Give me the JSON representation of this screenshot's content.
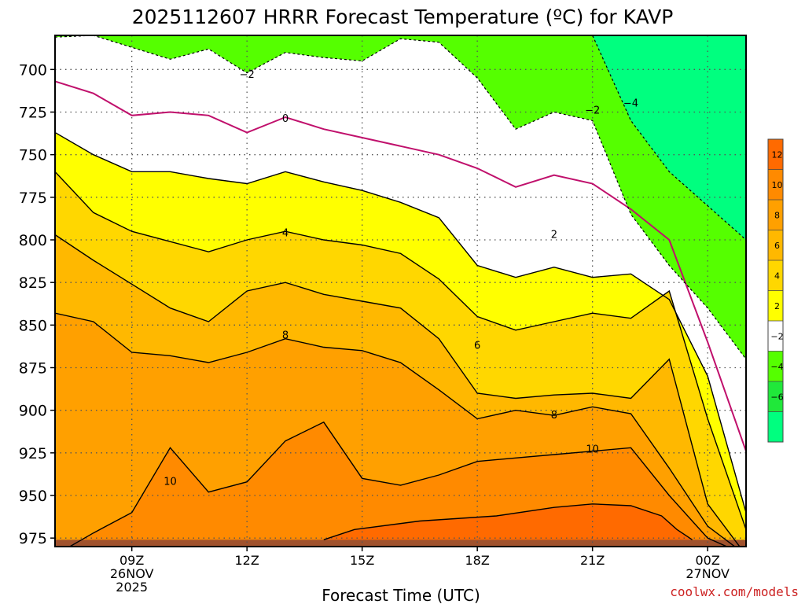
{
  "chart_data": {
    "type": "contour",
    "title": "2025112607 HRRR Forecast Temperature (ºC) for KAVP",
    "xlabel": "Forecast Time (UTC)",
    "credit": "coolwx.com/models",
    "x_ticks": [
      {
        "hour": 9,
        "label": "09Z",
        "sub1": "26NOV",
        "sub2": "2025"
      },
      {
        "hour": 12,
        "label": "12Z",
        "sub1": "",
        "sub2": ""
      },
      {
        "hour": 15,
        "label": "15Z",
        "sub1": "",
        "sub2": ""
      },
      {
        "hour": 18,
        "label": "18Z",
        "sub1": "",
        "sub2": ""
      },
      {
        "hour": 21,
        "label": "21Z",
        "sub1": "",
        "sub2": ""
      },
      {
        "hour": 24,
        "label": "00Z",
        "sub1": "27NOV",
        "sub2": ""
      }
    ],
    "x_range_hours": [
      7,
      25
    ],
    "y_ticks": [
      700,
      725,
      750,
      775,
      800,
      825,
      850,
      875,
      900,
      925,
      950,
      975
    ],
    "y_range_hpa": [
      680,
      980
    ],
    "grid": true,
    "hours": [
      7,
      8,
      9,
      10,
      11,
      12,
      13,
      14,
      15,
      16,
      17,
      18,
      19,
      20,
      21,
      22,
      23,
      24,
      25
    ],
    "isotherms": [
      {
        "temp": 10,
        "pressure": [
          985,
          972,
          960,
          922,
          948,
          942,
          918,
          907,
          940,
          944,
          938,
          930,
          928,
          926,
          924,
          922,
          950,
          975,
          985
        ]
      },
      {
        "temp": 8,
        "pressure": [
          843,
          848,
          866,
          868,
          872,
          866,
          858,
          863,
          865,
          872,
          888,
          905,
          900,
          903,
          898,
          902,
          934,
          968,
          985
        ]
      },
      {
        "temp": 6,
        "pressure": [
          797,
          812,
          826,
          840,
          848,
          830,
          825,
          832,
          836,
          840,
          858,
          890,
          893,
          891,
          890,
          893,
          870,
          955,
          985
        ]
      },
      {
        "temp": 4,
        "pressure": [
          760,
          784,
          795,
          801,
          807,
          800,
          795,
          800,
          803,
          808,
          823,
          845,
          853,
          848,
          843,
          846,
          830,
          905,
          970
        ]
      },
      {
        "temp": 2,
        "pressure": [
          737,
          750,
          760,
          760,
          764,
          767,
          760,
          766,
          771,
          778,
          787,
          815,
          822,
          816,
          822,
          820,
          835,
          880,
          960
        ]
      },
      {
        "temp": 0,
        "pressure": [
          707,
          714,
          727,
          725,
          727,
          737,
          728,
          735,
          740,
          745,
          750,
          758,
          769,
          762,
          767,
          782,
          800,
          860,
          924
        ]
      },
      {
        "temp": -2,
        "pressure": [
          681,
          680,
          687,
          694,
          688,
          702,
          690,
          693,
          695,
          682,
          684,
          705,
          735,
          725,
          730,
          785,
          815,
          840,
          870
        ]
      },
      {
        "temp": -4,
        "pressure": [
          680,
          680,
          680,
          680,
          680,
          680,
          680,
          680,
          680,
          680,
          680,
          680,
          680,
          680,
          680,
          730,
          760,
          780,
          800
        ]
      }
    ],
    "warm_core_12": [
      [
        14.0,
        976
      ],
      [
        14.8,
        970
      ],
      [
        16.5,
        965
      ],
      [
        18.5,
        962
      ],
      [
        20.0,
        957
      ],
      [
        21.0,
        955
      ],
      [
        22.0,
        956
      ],
      [
        22.8,
        962
      ],
      [
        23.2,
        970
      ],
      [
        23.6,
        976
      ]
    ],
    "contour_labels": [
      {
        "text": "−2",
        "hour": 12.0,
        "pressure": 703
      },
      {
        "text": "0",
        "pressure": 729,
        "hour": 13.0
      },
      {
        "text": "4",
        "hour": 13.0,
        "pressure": 796
      },
      {
        "text": "8",
        "hour": 13.0,
        "pressure": 856
      },
      {
        "text": "10",
        "hour": 10.0,
        "pressure": 942
      },
      {
        "text": "2",
        "hour": 20.0,
        "pressure": 797
      },
      {
        "text": "6",
        "hour": 18.0,
        "pressure": 862
      },
      {
        "text": "8",
        "hour": 20.0,
        "pressure": 903
      },
      {
        "text": "10",
        "hour": 21.0,
        "pressure": 923
      },
      {
        "text": "−2",
        "hour": 21.0,
        "pressure": 724
      },
      {
        "text": "−4",
        "hour": 22.0,
        "pressure": 720
      }
    ],
    "colorbar": {
      "labels": [
        "12",
        "10",
        "8",
        "6",
        "4",
        "2",
        "−2",
        "−4",
        "−6"
      ],
      "colors": [
        "#ff6a00",
        "#ff8a00",
        "#ffa000",
        "#ffb800",
        "#ffd700",
        "#ffff00",
        "#ffffff",
        "#55ff00",
        "#20e83a",
        "#00ff7f"
      ]
    },
    "band_colors": {
      "lt_m4": "#00ff7f",
      "m4_m2": "#55ff00",
      "m2_2": "#ffffff",
      "2_4": "#ffff00",
      "4_6": "#ffd700",
      "6_8": "#ffb800",
      "8_10": "#ffa000",
      "10_12": "#ff8a00",
      "gt_12": "#ff6a00",
      "ground": "#a0522d",
      "freezing_line": "#c0106c"
    }
  }
}
